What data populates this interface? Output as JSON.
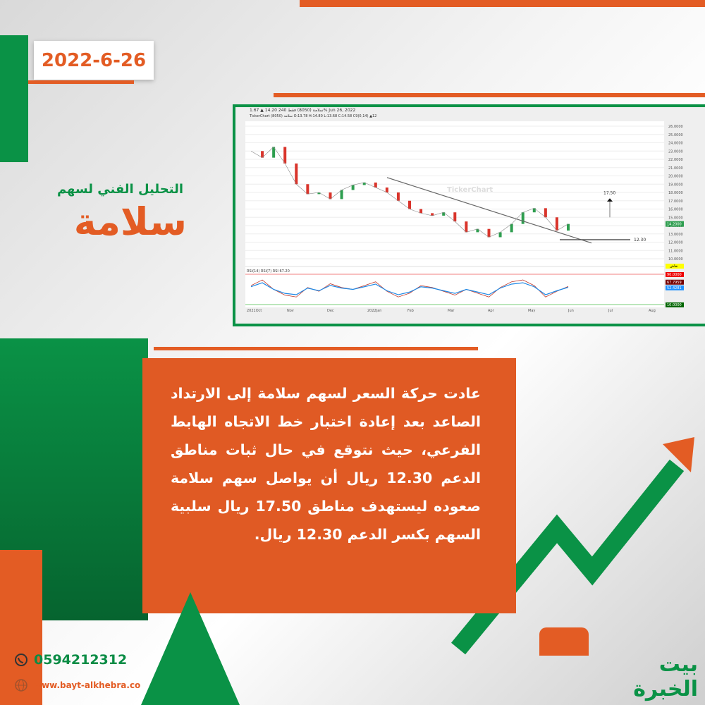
{
  "date": "2022-6-26",
  "subtitle": "التحليل الفني لسهم",
  "title": "سلامة",
  "chart": {
    "header": "سلامة (8050)  فقط 240  14.20 ▲ 1.67%  Jun 26, 2022",
    "subheader": "TickerChart سلامة (8050) O:13.78 H:14.80 L:13.68 C:14.58   C9(0,14) ▲12",
    "watermark": "TickerChart",
    "y_ticks": [
      "26.0000",
      "25.0000",
      "24.0000",
      "23.0000",
      "22.0000",
      "21.0000",
      "20.0000",
      "19.0000",
      "18.0000",
      "17.0000",
      "16.0000",
      "15.0000",
      "14.0000",
      "13.0000",
      "12.0000",
      "11.0000",
      "10.0000"
    ],
    "last_price": "14.2000",
    "x_ticks": [
      "2021Oct",
      "Nov",
      "Dec",
      "2022Jan",
      "Feb",
      "Mar",
      "Apr",
      "May",
      "Jun",
      "Jul",
      "Aug"
    ],
    "target_label": "17.50",
    "support_label": "12.30",
    "rsi_labels": [
      "90.0000",
      "67.7959",
      "52.4281",
      "10.0000"
    ],
    "rsi_header": "RSI(14)  RSI(7)  RSI 67.20",
    "yellow_tag": "نقاش"
  },
  "chart_data": {
    "type": "line",
    "ylim": [
      10,
      26
    ],
    "price": [
      23,
      22.2,
      23.5,
      21.5,
      19,
      17.8,
      18,
      17.2,
      18.3,
      18.9,
      19.2,
      18.6,
      18,
      17,
      16,
      15.5,
      15.2,
      15.6,
      14.5,
      13.2,
      13.6,
      12.6,
      13.2,
      14.2,
      15.6,
      16.1,
      15,
      13.4,
      14.2
    ],
    "rsi": [
      60,
      75,
      50,
      35,
      30,
      55,
      45,
      65,
      55,
      50,
      60,
      70,
      45,
      30,
      40,
      60,
      55,
      45,
      35,
      50,
      40,
      30,
      55,
      70,
      75,
      60,
      30,
      45,
      58
    ],
    "colors": {
      "up": "#2e9e4f",
      "down": "#d9342b",
      "trend": "#666666",
      "rsi1": "#1e88e5",
      "rsi2": "#c0392b"
    }
  },
  "body_text": "عادت حركة السعر لسهم سلامة إلى الارتداد الصاعد بعد إعادة اختبار خط الاتجاه الهابط الفرعي، حيث نتوقع في حال ثبات مناطق الدعم 12.30 ريال أن يواصل سهم سلامة صعوده ليستهدف مناطق 17.50 ريال سلبية السهم بكسر الدعم 12.30 ريال.",
  "contact": {
    "phone": "0594212312",
    "website": "www.bayt-alkhebra.co"
  },
  "logo": "بيت الخبرة",
  "colors": {
    "orange": "#e35c24",
    "green": "#0a9246"
  }
}
